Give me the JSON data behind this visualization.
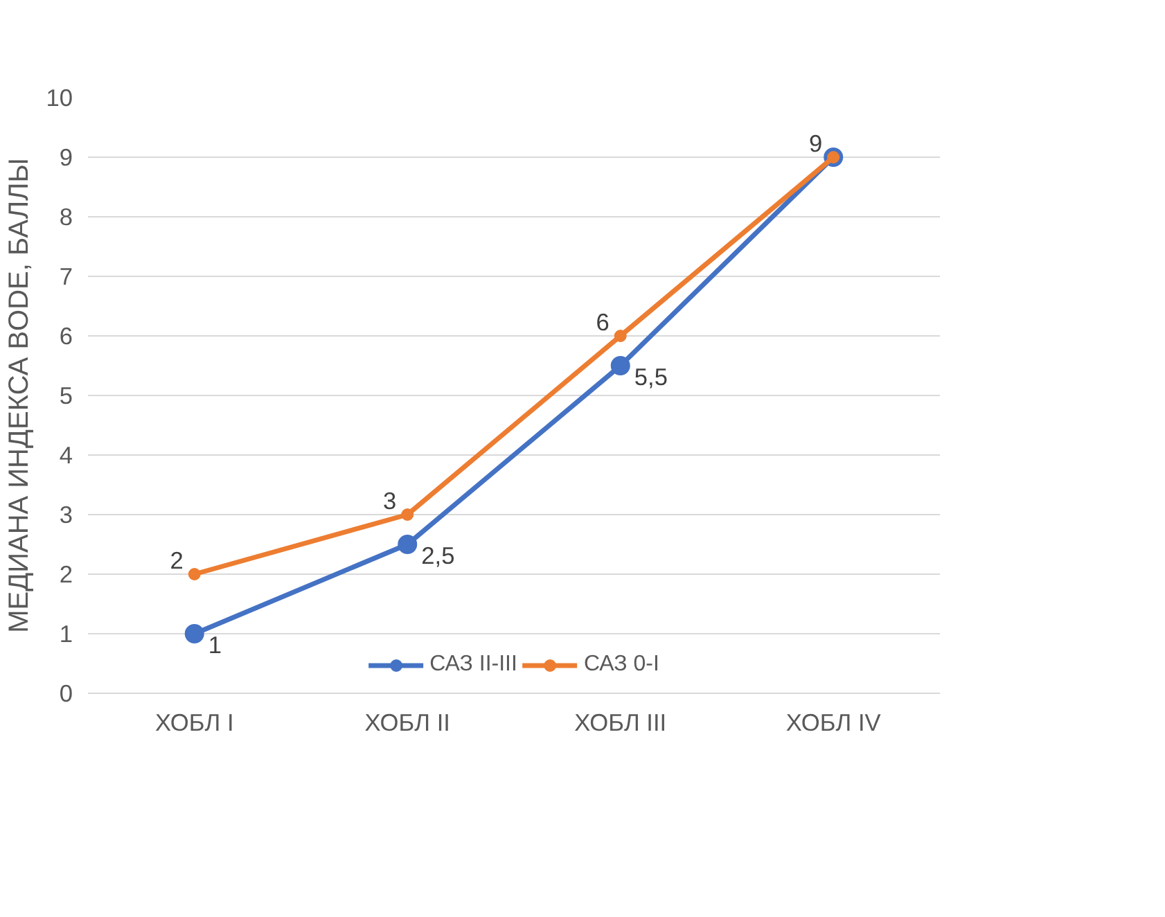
{
  "chart_data": {
    "type": "line",
    "ylabel": "МЕДИАНА ИНДЕКСА BODE, БАЛЛЫ",
    "categories": [
      "ХОБЛ I",
      "ХОБЛ II",
      "ХОБЛ III",
      "ХОБЛ IV"
    ],
    "series": [
      {
        "name": "САЗ II-III",
        "color": "#4472c4",
        "values": [
          1,
          2.5,
          5.5,
          9
        ],
        "value_labels": [
          "1",
          "2,5",
          "5,5",
          null
        ]
      },
      {
        "name": "САЗ 0-I",
        "color": "#ed7d31",
        "values": [
          2,
          3,
          6,
          9
        ],
        "value_labels": [
          "2",
          "3",
          "6",
          "9"
        ]
      }
    ],
    "ylim": [
      0,
      10
    ],
    "yticks": [
      0,
      1,
      2,
      3,
      4,
      5,
      6,
      7,
      8,
      9,
      10
    ],
    "grid": "y",
    "legend": "bottom",
    "marker": "circle",
    "line_style": "solid"
  }
}
